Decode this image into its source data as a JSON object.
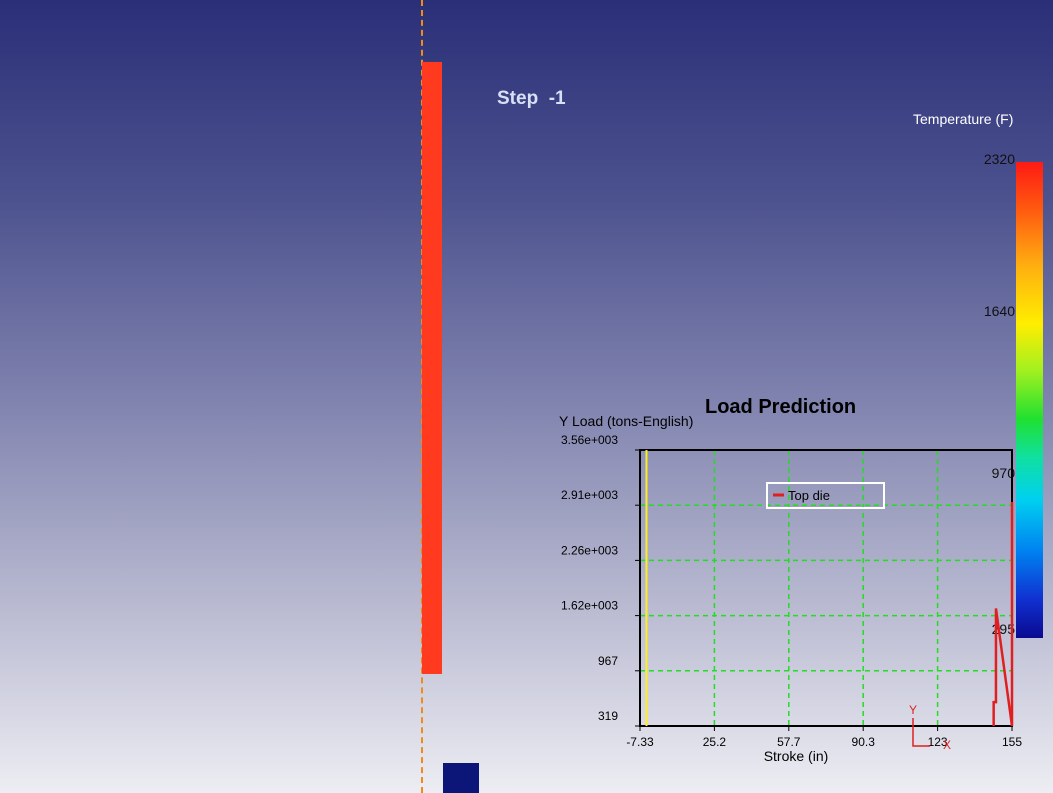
{
  "viewer": {
    "step_label": "Step  -1",
    "colors": {
      "billet": "#ff3a1f",
      "symmetry_axis": "#f08a1a",
      "bottom_die": "#0c1678"
    }
  },
  "legend": {
    "title": "Temperature (F)",
    "max_label": "2320",
    "labels": [
      "2320",
      "1640",
      "970",
      "295"
    ]
  },
  "chart_data": {
    "type": "line",
    "title": "Load Prediction",
    "ylabel": "Y Load (tons-English)",
    "xlabel": "Stroke (in)",
    "x_ticks": [
      "-7.33",
      "25.2",
      "57.7",
      "90.3",
      "123",
      "155"
    ],
    "y_ticks": [
      "319",
      "967",
      "1.62e+003",
      "2.26e+003",
      "2.91e+003",
      "3.56e+003"
    ],
    "xlim": [
      -7.33,
      155
    ],
    "ylim": [
      319,
      3560
    ],
    "grid": true,
    "legend_position": "top-center",
    "series": [
      {
        "name": "Top die",
        "color": "#e02020",
        "x": [
          147,
          147,
          148,
          148,
          148,
          155,
          155
        ],
        "y": [
          319,
          600,
          600,
          1000,
          1700,
          319,
          2950
        ]
      }
    ],
    "marker_x": -4.5,
    "marker_color": "#ffee22",
    "triad_labels": [
      "Y",
      "X"
    ]
  }
}
